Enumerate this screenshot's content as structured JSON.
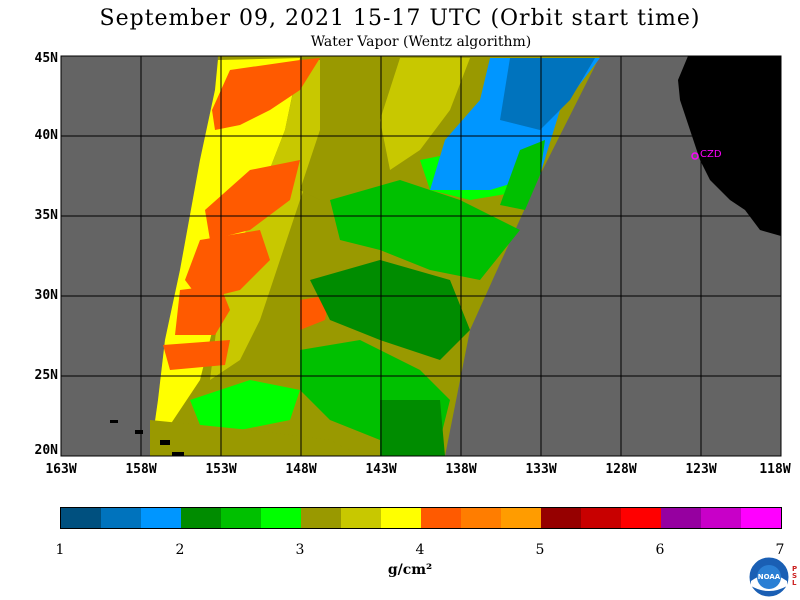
{
  "title": "September 09, 2021  15-17 UTC  (Orbit start time)",
  "subtitle": "Water Vapor (Wentz algorithm)",
  "lat_labels": [
    "45N",
    "40N",
    "35N",
    "30N",
    "25N",
    "20N"
  ],
  "lon_labels": [
    "163W",
    "158W",
    "153W",
    "148W",
    "143W",
    "138W",
    "133W",
    "128W",
    "123W",
    "118W"
  ],
  "station_label": "CZD",
  "colorbar": {
    "colors": [
      "#00507f",
      "#0073bd",
      "#0096ff",
      "#008c00",
      "#00c000",
      "#00ff00",
      "#999900",
      "#c8c800",
      "#ffff00",
      "#ff5a00",
      "#ff7d00",
      "#ff9c00",
      "#960000",
      "#c80000",
      "#ff0000",
      "#9600a0",
      "#c800c8",
      "#ff00ff"
    ],
    "ticks": [
      "1",
      "2",
      "3",
      "4",
      "5",
      "6",
      "7"
    ],
    "units": "g/cm²"
  },
  "map_colors": {
    "background": "#646464",
    "land": "#000000",
    "station": "#ff00ff"
  },
  "logo_text": "NOAA",
  "logo_side_text": [
    "P",
    "S",
    "L"
  ]
}
